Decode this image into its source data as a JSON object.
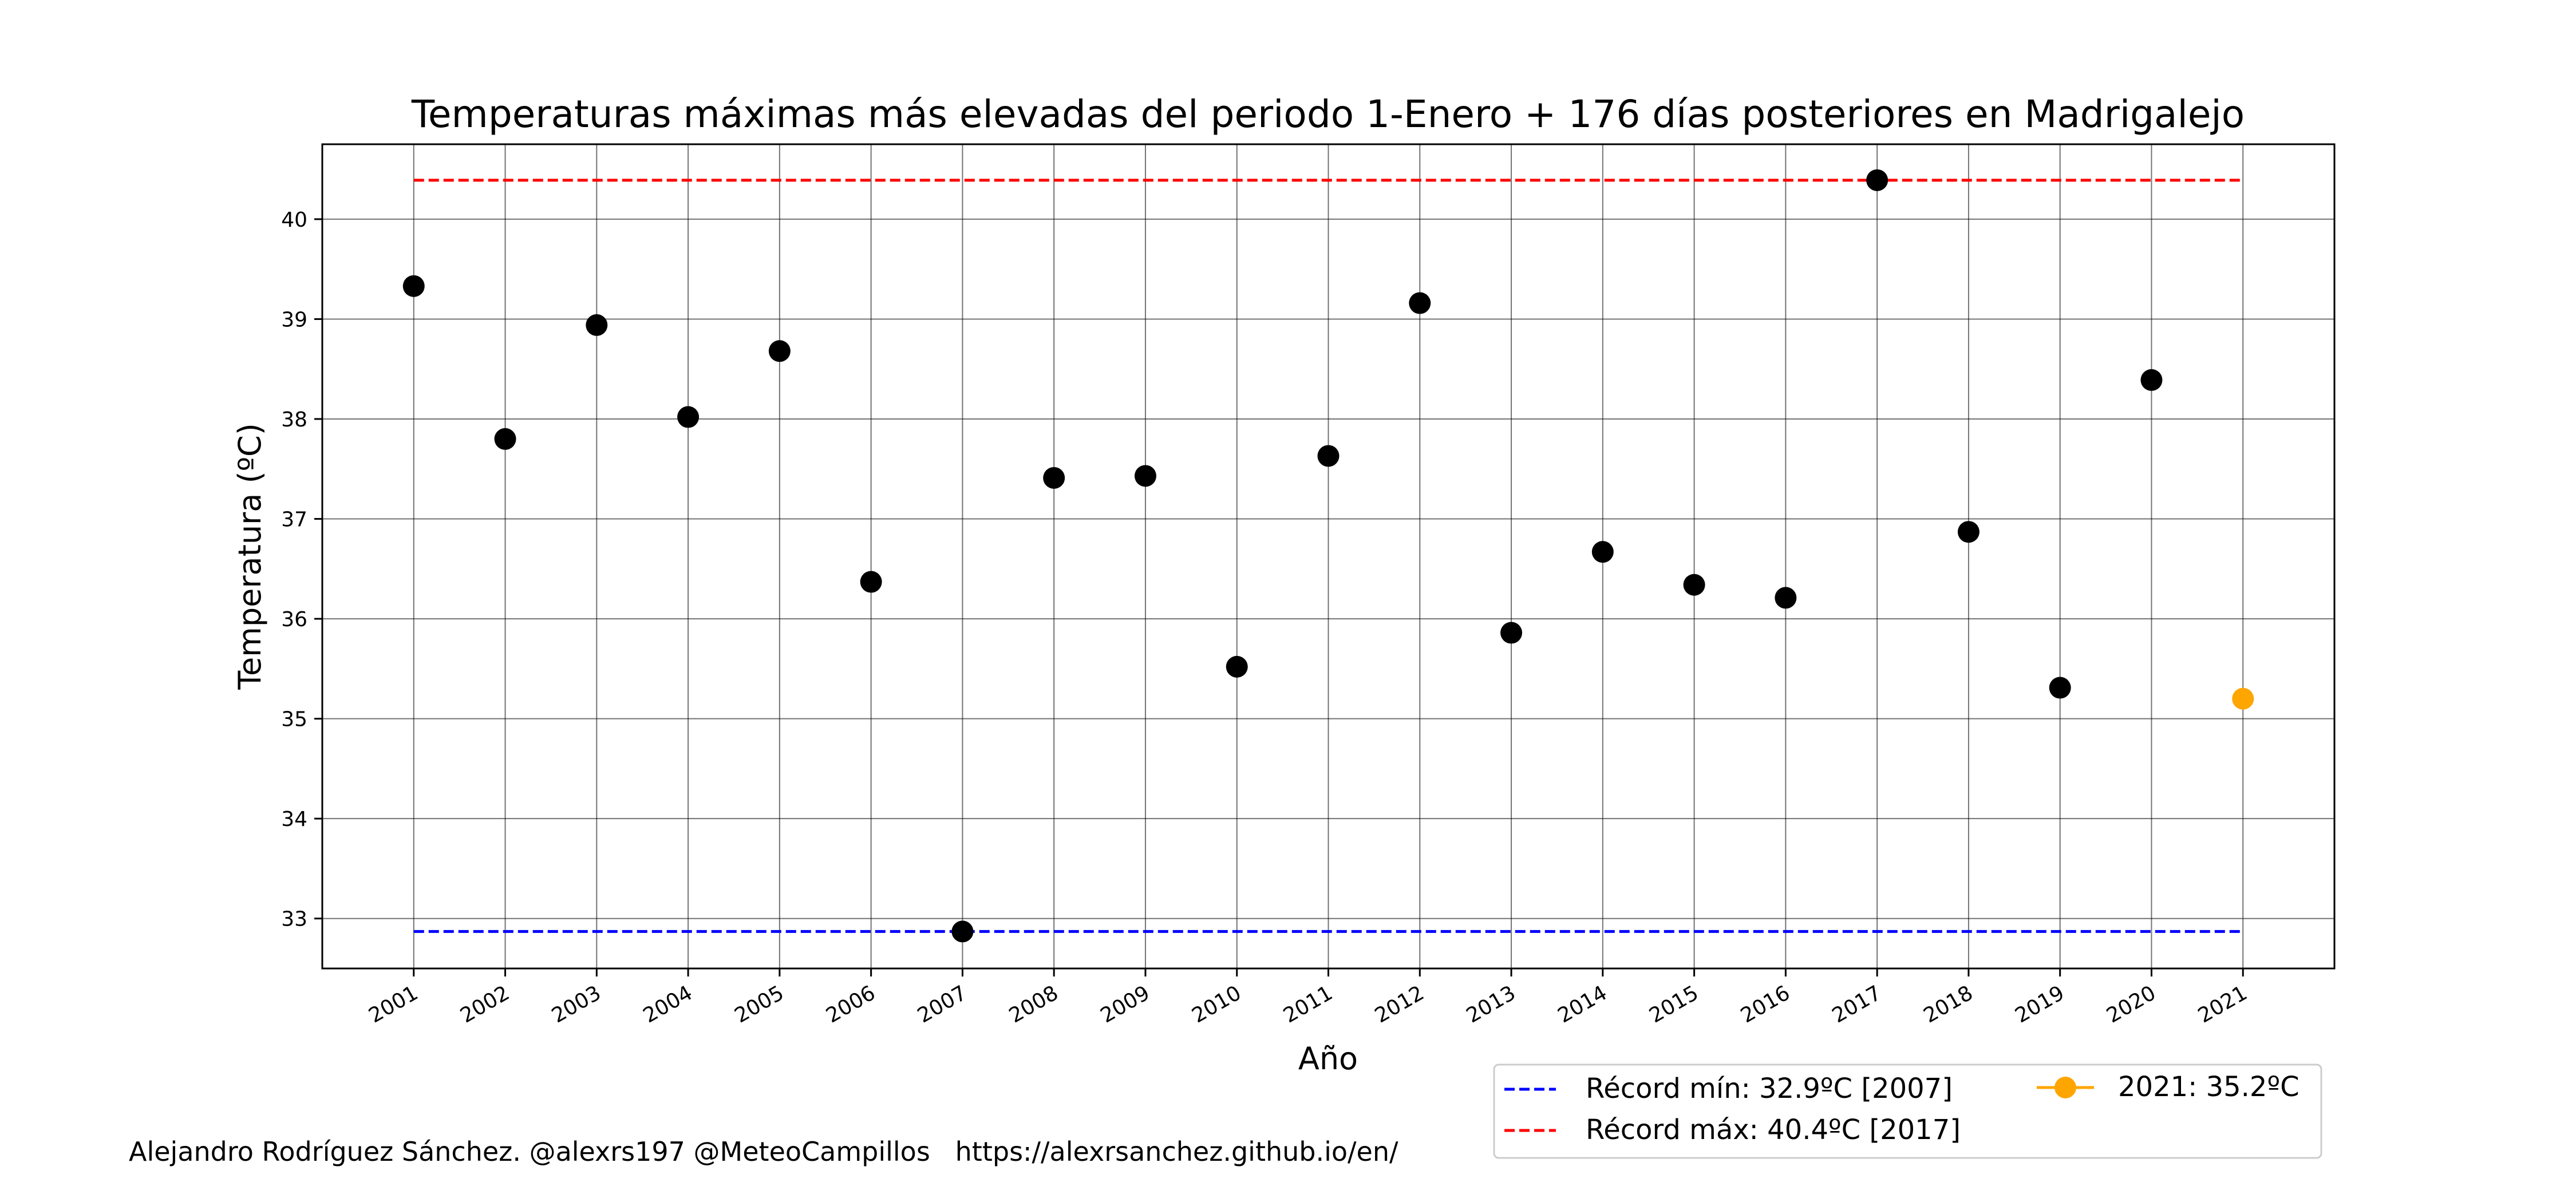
{
  "chart_data": {
    "type": "scatter",
    "title": "Temperaturas máximas más elevadas del periodo 1-Enero + 176 días posteriores en Madrigalejo",
    "xlabel": "Año",
    "ylabel": "Temperatura (ºC)",
    "x": [
      2001,
      2002,
      2003,
      2004,
      2005,
      2006,
      2007,
      2008,
      2009,
      2010,
      2011,
      2012,
      2013,
      2014,
      2015,
      2016,
      2017,
      2018,
      2019,
      2020
    ],
    "y": [
      39.33,
      37.8,
      38.94,
      38.02,
      38.68,
      36.37,
      32.87,
      37.41,
      37.43,
      35.52,
      37.63,
      39.16,
      35.86,
      36.67,
      36.34,
      36.21,
      40.39,
      36.87,
      35.31,
      38.39
    ],
    "highlight": {
      "label": "2021: 35.2ºC",
      "x": 2021,
      "y": 35.2,
      "color": "#ffa500"
    },
    "record_min": {
      "label": "Récord mín: 32.9ºC [2007]",
      "value": 32.87,
      "color": "#0000ff"
    },
    "record_max": {
      "label": "Récord máx: 40.4ºC [2017]",
      "value": 40.39,
      "color": "#ff0000"
    },
    "x_ticks": [
      "2001",
      "2002",
      "2003",
      "2004",
      "2005",
      "2006",
      "2007",
      "2008",
      "2009",
      "2010",
      "2011",
      "2012",
      "2013",
      "2014",
      "2015",
      "2016",
      "2017",
      "2018",
      "2019",
      "2020",
      "2021"
    ],
    "y_ticks": [
      "33",
      "34",
      "35",
      "36",
      "37",
      "38",
      "39",
      "40"
    ],
    "xlim": [
      2000,
      2022
    ],
    "ylim": [
      32.5,
      40.75
    ],
    "grid": true,
    "legend_position": "bottom-right"
  },
  "footer": {
    "credit": "Alejandro Rodríguez Sánchez. @alexrs197 @MeteoCampillos   https://alexrsanchez.github.io/en/"
  }
}
